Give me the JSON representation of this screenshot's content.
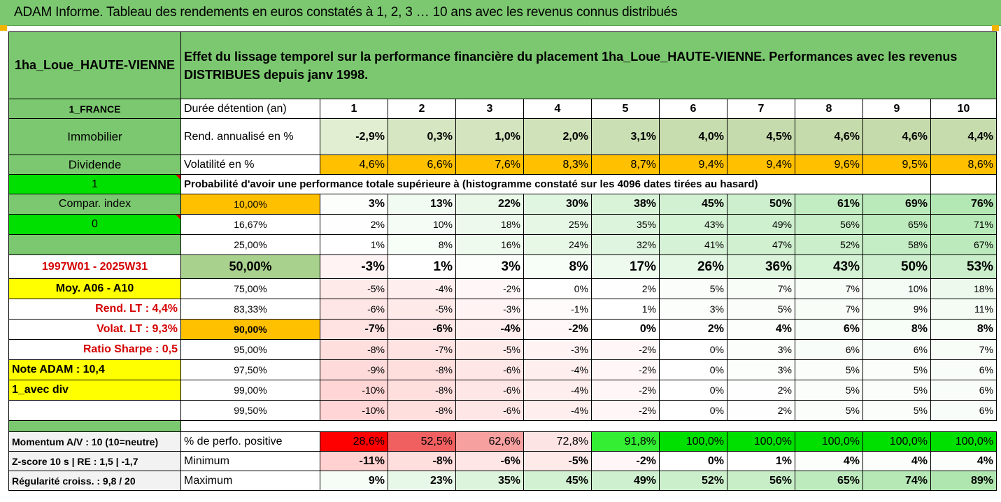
{
  "banner": {
    "title": "ADAM Informe. Tableau des rendements en euros constatés à 1, 2, 3 … 10 ans avec les revenus connus distribués"
  },
  "header": {
    "fund": "1ha_Loue_HAUTE-VIENNE",
    "description_line1": "Effet du lissage temporel sur la performance financière du placement 1ha_Loue_HAUTE-VIENNE. Performances avec les revenus",
    "description_line2": "DISTRIBUES depuis janv 1998."
  },
  "left": {
    "country": "1_FRANCE",
    "category": "Immobilier",
    "dividend": "Dividende",
    "one": "1",
    "compar_index": "Compar. index",
    "zero": "0",
    "period": "1997W01 - 2025W31",
    "moy": "Moy. A06 - A10",
    "rend_lt": "Rend. LT :   4,4%",
    "volat_lt": "Volat. LT :   9,3%",
    "sharpe": "Ratio Sharpe :   0,5",
    "note": "Note ADAM : 10,4",
    "avec_div": "1_avec div",
    "momentum": "Momentum A/V : 10 (10=neutre)",
    "zscore": "Z-score 10 s  |  RE : 1,5  |  -1,7",
    "regularite": "Régularité croiss. : 9,8 / 20"
  },
  "labels": {
    "duree": "Durée détention (an)",
    "rend": "Rend. annualisé en %",
    "volat": "Volatilité en %",
    "proba": "Probabilité d'avoir une performance totale supérieure à (histogramme constaté sur les 4096 dates tirées au hasard)",
    "pct_pos": "% de perfo. positive",
    "minimum": "Minimum",
    "maximum": "Maximum"
  },
  "years": [
    "1",
    "2",
    "3",
    "4",
    "5",
    "6",
    "7",
    "8",
    "9",
    "10"
  ],
  "rend": [
    "-2,9%",
    "0,3%",
    "1,0%",
    "2,0%",
    "3,1%",
    "4,0%",
    "4,5%",
    "4,6%",
    "4,6%",
    "4,4%"
  ],
  "volat": [
    "4,6%",
    "6,6%",
    "7,6%",
    "8,3%",
    "8,7%",
    "9,4%",
    "9,4%",
    "9,6%",
    "9,5%",
    "8,6%"
  ],
  "quantiles": [
    {
      "q": "10,00%",
      "v": [
        "3%",
        "13%",
        "22%",
        "30%",
        "38%",
        "45%",
        "50%",
        "61%",
        "69%",
        "76%"
      ]
    },
    {
      "q": "16,67%",
      "v": [
        "2%",
        "10%",
        "18%",
        "25%",
        "35%",
        "43%",
        "49%",
        "56%",
        "65%",
        "71%"
      ]
    },
    {
      "q": "25,00%",
      "v": [
        "1%",
        "8%",
        "16%",
        "24%",
        "32%",
        "41%",
        "47%",
        "52%",
        "58%",
        "67%"
      ]
    },
    {
      "q": "50,00%",
      "v": [
        "-3%",
        "1%",
        "3%",
        "8%",
        "17%",
        "26%",
        "36%",
        "43%",
        "50%",
        "53%"
      ]
    },
    {
      "q": "75,00%",
      "v": [
        "-5%",
        "-4%",
        "-2%",
        "0%",
        "2%",
        "5%",
        "7%",
        "7%",
        "10%",
        "18%"
      ]
    },
    {
      "q": "83,33%",
      "v": [
        "-6%",
        "-5%",
        "-3%",
        "-1%",
        "1%",
        "3%",
        "5%",
        "7%",
        "9%",
        "11%"
      ]
    },
    {
      "q": "90,00%",
      "v": [
        "-7%",
        "-6%",
        "-4%",
        "-2%",
        "0%",
        "2%",
        "4%",
        "6%",
        "8%",
        "8%"
      ]
    },
    {
      "q": "95,00%",
      "v": [
        "-8%",
        "-7%",
        "-5%",
        "-3%",
        "-2%",
        "0%",
        "3%",
        "6%",
        "6%",
        "7%"
      ]
    },
    {
      "q": "97,50%",
      "v": [
        "-9%",
        "-8%",
        "-6%",
        "-4%",
        "-2%",
        "0%",
        "3%",
        "5%",
        "5%",
        "6%"
      ]
    },
    {
      "q": "99,00%",
      "v": [
        "-10%",
        "-8%",
        "-6%",
        "-4%",
        "-2%",
        "0%",
        "2%",
        "5%",
        "5%",
        "6%"
      ]
    },
    {
      "q": "99,50%",
      "v": [
        "-10%",
        "-8%",
        "-6%",
        "-4%",
        "-2%",
        "0%",
        "2%",
        "5%",
        "5%",
        "6%"
      ]
    }
  ],
  "pct_pos": [
    "28,6%",
    "52,5%",
    "62,6%",
    "72,8%",
    "91,8%",
    "100,0%",
    "100,0%",
    "100,0%",
    "100,0%",
    "100,0%"
  ],
  "minimum": [
    "-11%",
    "-8%",
    "-6%",
    "-5%",
    "-2%",
    "0%",
    "1%",
    "4%",
    "4%",
    "4%"
  ],
  "maximum": [
    "9%",
    "23%",
    "35%",
    "45%",
    "49%",
    "52%",
    "56%",
    "65%",
    "74%",
    "89%"
  ],
  "colors": {
    "header_green": "#7cc870",
    "highlight_yellow": "#ffff00",
    "highlight_orange": "#ffc000",
    "bright_green": "#00e000",
    "red_text": "#d40000"
  }
}
